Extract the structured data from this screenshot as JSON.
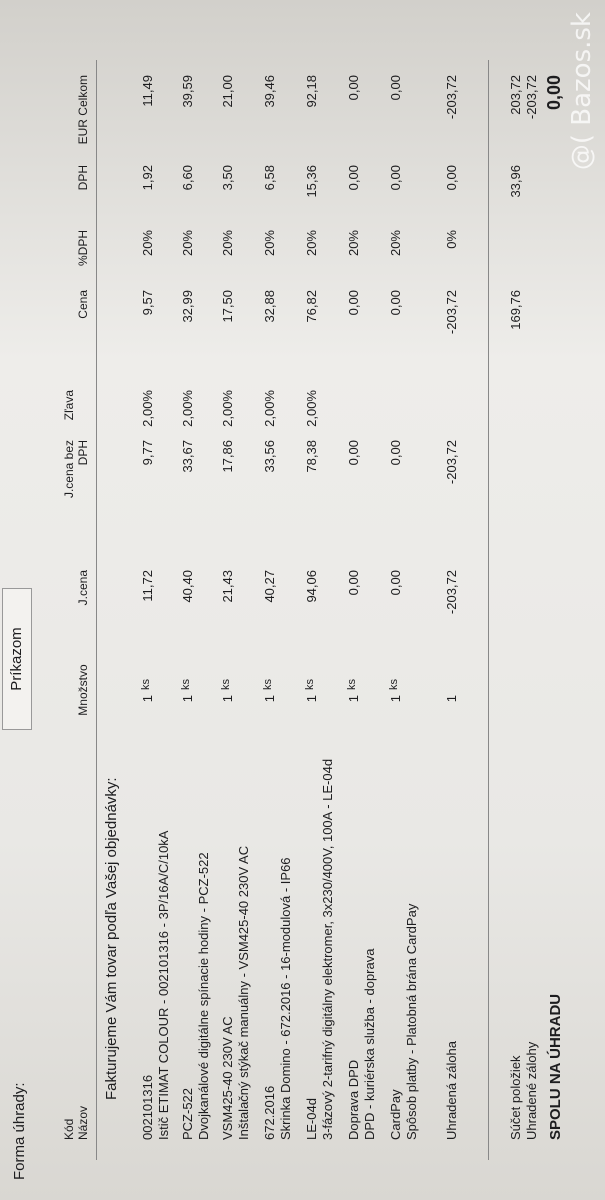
{
  "payment": {
    "label": "Forma úhrady:",
    "value": "Príkazom"
  },
  "intro": "Fakturujeme Vám tovar podľa Vašej objednávky:",
  "header": {
    "code": "Kód",
    "name": "Názov",
    "qty": "Množstvo",
    "unit_price": "J.cena",
    "unit_price_net": "J.cena bez DPH",
    "discount": "Zľava",
    "price": "Cena",
    "vat_rate": "%DPH",
    "vat": "DPH",
    "total": "EUR Celkom"
  },
  "items": [
    {
      "code": "002101316",
      "name": "Istič ETIMAT COLOUR - 002101316 - 3P/16A/C/10kA",
      "qty": "1",
      "unit": "ks",
      "unit_price": "11,72",
      "unit_price_net": "9,77",
      "discount": "2,00%",
      "price": "9,57",
      "vat_rate": "20%",
      "vat": "1,92",
      "total": "11,49"
    },
    {
      "code": "PCZ-522",
      "name": "Dvojkanálové digitálne spínacie hodiny - PCZ-522",
      "qty": "1",
      "unit": "ks",
      "unit_price": "40,40",
      "unit_price_net": "33,67",
      "discount": "2,00%",
      "price": "32,99",
      "vat_rate": "20%",
      "vat": "6,60",
      "total": "39,59"
    },
    {
      "code": "VSM425-40 230V AC",
      "name": "Inštalačný stýkač manuálny - VSM425-40 230V AC",
      "qty": "1",
      "unit": "ks",
      "unit_price": "21,43",
      "unit_price_net": "17,86",
      "discount": "2,00%",
      "price": "17,50",
      "vat_rate": "20%",
      "vat": "3,50",
      "total": "21,00"
    },
    {
      "code": "672.2016",
      "name": "Skrinka Domino - 672.2016 - 16-modulová - IP66",
      "qty": "1",
      "unit": "ks",
      "unit_price": "40,27",
      "unit_price_net": "33,56",
      "discount": "2,00%",
      "price": "32,88",
      "vat_rate": "20%",
      "vat": "6,58",
      "total": "39,46"
    },
    {
      "code": "LE-04d",
      "name": "3-fázový 2-tarifný digitálny elektromer, 3x230/400V, 100A - LE-04d",
      "qty": "1",
      "unit": "ks",
      "unit_price": "94,06",
      "unit_price_net": "78,38",
      "discount": "2,00%",
      "price": "76,82",
      "vat_rate": "20%",
      "vat": "15,36",
      "total": "92,18"
    },
    {
      "code": "Doprava DPD",
      "name": "DPD - kuriérska služba - doprava",
      "qty": "1",
      "unit": "ks",
      "unit_price": "0,00",
      "unit_price_net": "0,00",
      "price": "0,00",
      "vat_rate": "20%",
      "vat": "0,00",
      "total": "0,00"
    },
    {
      "code": "CardPay",
      "name": "Spôsob platby - Platobná brána CardPay",
      "qty": "1",
      "unit": "ks",
      "unit_price": "0,00",
      "unit_price_net": "0,00",
      "price": "0,00",
      "vat_rate": "20%",
      "vat": "0,00",
      "total": "0,00"
    },
    {
      "name": "Uhradená záloha",
      "qty": "1",
      "unit_price": "-203,72",
      "unit_price_net": "-203,72",
      "price": "-203,72",
      "vat_rate": "0%",
      "vat": "0,00",
      "total": "-203,72"
    }
  ],
  "summary": {
    "items_sum": {
      "label": "Súčet položiek",
      "price": "169,76",
      "vat": "33,96",
      "total": "203,72"
    },
    "advances": {
      "label": "Uhradené zálohy",
      "total": "-203,72"
    },
    "due": {
      "label": "SPOLU NA ÚHRADU",
      "total": "0,00"
    }
  },
  "watermark": "@( Bazos.sk"
}
